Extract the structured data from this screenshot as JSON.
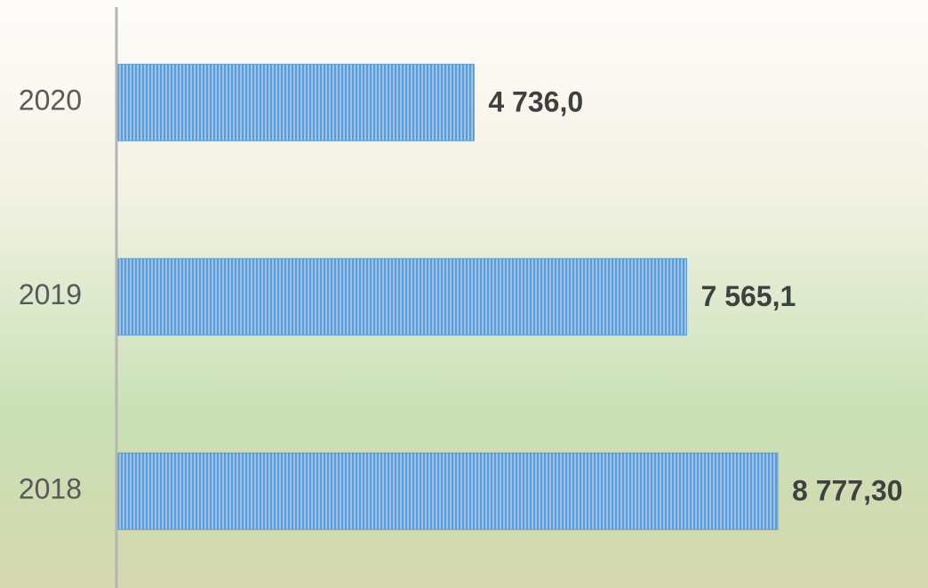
{
  "chart_data": {
    "type": "barh",
    "categories": [
      "2020",
      "2019",
      "2018"
    ],
    "values": [
      4736.0,
      7565.1,
      8777.3
    ],
    "value_labels": [
      "4 736,0",
      "7 565,1",
      "8 777,30"
    ],
    "color": "#5b9bd5"
  }
}
